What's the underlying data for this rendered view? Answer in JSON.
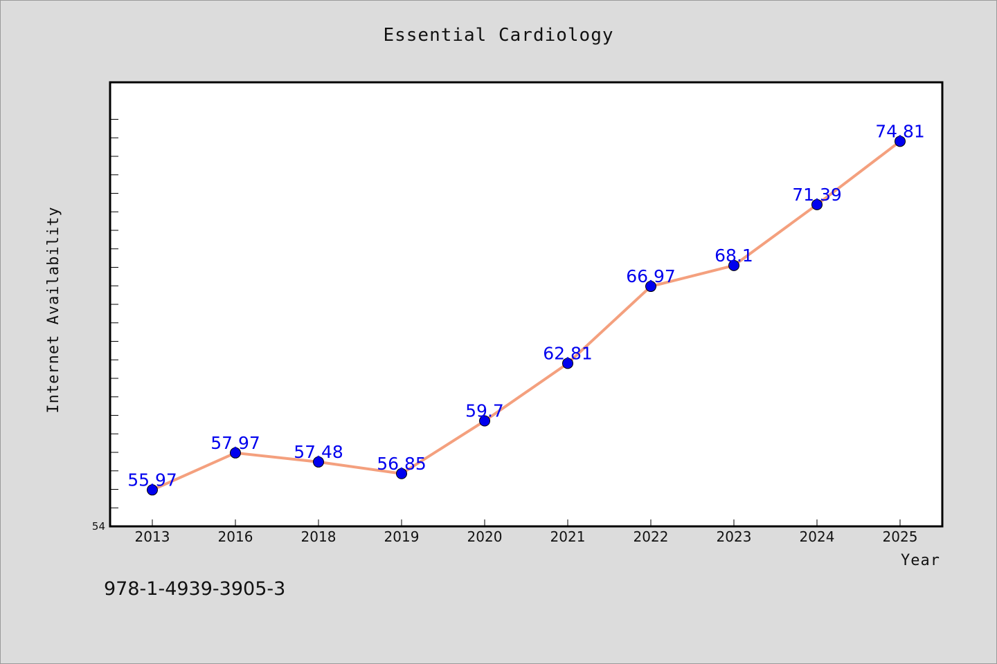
{
  "chart_data": {
    "type": "line",
    "title": "Essential Cardiology",
    "xlabel": "Year",
    "ylabel": "Internet Availability",
    "categories": [
      "2013",
      "2016",
      "2018",
      "2019",
      "2020",
      "2021",
      "2022",
      "2023",
      "2024",
      "2025"
    ],
    "series": [
      {
        "values": [
          55.97,
          57.97,
          57.48,
          56.85,
          59.7,
          62.81,
          66.97,
          68.1,
          71.39,
          74.81
        ]
      }
    ],
    "data_labels": [
      "55.97",
      "57.97",
      "57.48",
      "56.85",
      "59.7",
      "62.81",
      "66.97",
      "68.1",
      "71.39",
      "74.81"
    ],
    "ylim": [
      54,
      78
    ],
    "y_tick_labels": [
      "54"
    ],
    "grid": false,
    "line_color": "#f4a07e",
    "marker_color": "#0000ee",
    "label_color": "#0000ee"
  },
  "footer": {
    "isbn": "978-1-4939-3905-3"
  }
}
